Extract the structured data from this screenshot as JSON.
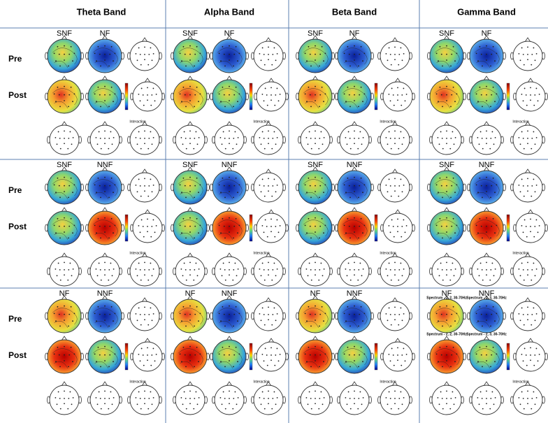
{
  "columns": [
    "Theta Band",
    "Alpha Band",
    "Beta Band",
    "Gamma Band"
  ],
  "row_labels": [
    "Pre",
    "Post"
  ],
  "blocks": [
    {
      "conditions": [
        "SNF",
        "NF"
      ]
    },
    {
      "conditions": [
        "SNF",
        "NNF"
      ]
    },
    {
      "conditions": [
        "NF",
        "NNF"
      ]
    }
  ],
  "interaction_label": "Interaction",
  "spectrum_labels": [
    "Spectrum - 1, 2, 30-70Hz",
    "Spectrum - 1, 3, 30-70Hz",
    "Spectrum - 2, 2, 30-70Hz",
    "Spectrum - 2, 3, 30-70Hz"
  ]
}
